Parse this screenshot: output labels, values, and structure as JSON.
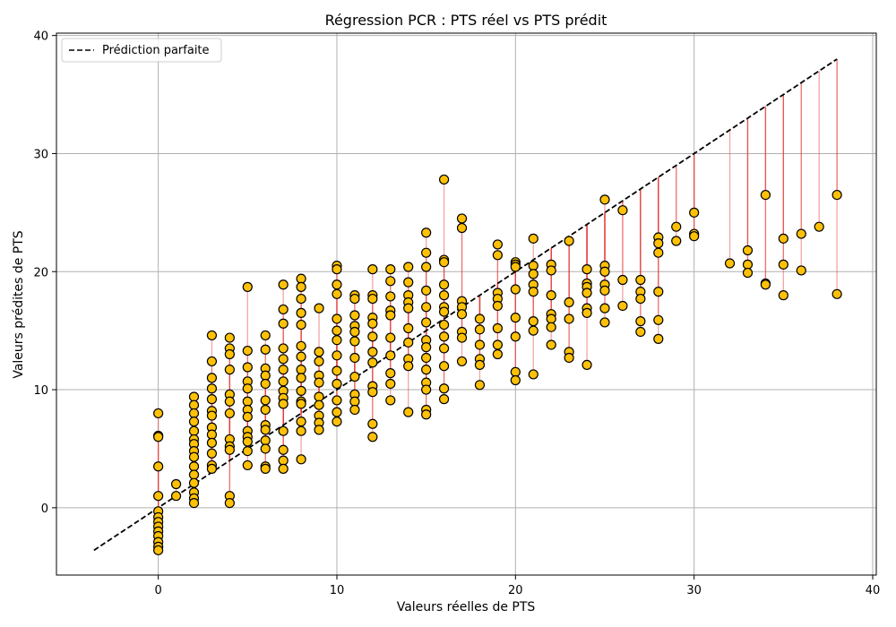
{
  "chart_data": {
    "type": "scatter",
    "title": "Régression PCR : PTS réel vs PTS prédit",
    "xlabel": "Valeurs réelles de PTS",
    "ylabel": "Valeurs prédites de PTS",
    "xlim": [
      -5.7,
      40.2
    ],
    "ylim": [
      -5.7,
      40.2
    ],
    "xticks": [
      0,
      10,
      20,
      30,
      40
    ],
    "yticks": [
      0,
      10,
      20,
      30,
      40
    ],
    "grid": true,
    "legend": {
      "placement": "top-left",
      "entries": [
        "Prédiction parfaite"
      ]
    },
    "colors": {
      "marker_fill": "#FFC107",
      "marker_edge": "#000000",
      "residual_line": "#E53935",
      "ideal_line": "#000000",
      "grid": "#B0B0B0"
    },
    "ideal_line": {
      "name": "Prédiction parfaite",
      "x": [
        -3.6,
        38
      ],
      "y": [
        -3.6,
        38
      ],
      "style": "dashed"
    },
    "points": [
      [
        0,
        8.0
      ],
      [
        0,
        6.1
      ],
      [
        0,
        6.0
      ],
      [
        0,
        3.5
      ],
      [
        0,
        1.0
      ],
      [
        0,
        -0.3
      ],
      [
        0,
        -0.8
      ],
      [
        0,
        -1.2
      ],
      [
        0,
        -1.6
      ],
      [
        0,
        -2.0
      ],
      [
        0,
        -2.4
      ],
      [
        0,
        -2.9
      ],
      [
        0,
        -3.3
      ],
      [
        0,
        -3.6
      ],
      [
        1,
        1.0
      ],
      [
        1,
        2.0
      ],
      [
        2,
        9.4
      ],
      [
        2,
        8.7
      ],
      [
        2,
        8.0
      ],
      [
        2,
        7.3
      ],
      [
        2,
        6.5
      ],
      [
        2,
        5.8
      ],
      [
        2,
        5.4
      ],
      [
        2,
        4.8
      ],
      [
        2,
        4.3
      ],
      [
        2,
        3.5
      ],
      [
        2,
        2.8
      ],
      [
        2,
        2.1
      ],
      [
        2,
        1.3
      ],
      [
        2,
        0.8
      ],
      [
        2,
        0.4
      ],
      [
        3,
        14.6
      ],
      [
        3,
        12.4
      ],
      [
        3,
        11.0
      ],
      [
        3,
        10.1
      ],
      [
        3,
        9.2
      ],
      [
        3,
        8.2
      ],
      [
        3,
        7.8
      ],
      [
        3,
        6.8
      ],
      [
        3,
        6.2
      ],
      [
        3,
        5.5
      ],
      [
        3,
        4.6
      ],
      [
        3,
        3.6
      ],
      [
        3,
        3.3
      ],
      [
        4,
        14.4
      ],
      [
        4,
        13.5
      ],
      [
        4,
        13.0
      ],
      [
        4,
        11.7
      ],
      [
        4,
        9.6
      ],
      [
        4,
        9.0
      ],
      [
        4,
        8.0
      ],
      [
        4,
        5.8
      ],
      [
        4,
        5.2
      ],
      [
        4,
        4.9
      ],
      [
        4,
        1.0
      ],
      [
        4,
        0.4
      ],
      [
        5,
        18.7
      ],
      [
        5,
        13.3
      ],
      [
        5,
        11.9
      ],
      [
        5,
        10.7
      ],
      [
        5,
        10.1
      ],
      [
        5,
        9.0
      ],
      [
        5,
        8.3
      ],
      [
        5,
        7.7
      ],
      [
        5,
        6.5
      ],
      [
        5,
        6.0
      ],
      [
        5,
        5.6
      ],
      [
        5,
        4.8
      ],
      [
        5,
        3.6
      ],
      [
        6,
        14.6
      ],
      [
        6,
        13.4
      ],
      [
        6,
        11.8
      ],
      [
        6,
        11.2
      ],
      [
        6,
        10.5
      ],
      [
        6,
        9.1
      ],
      [
        6,
        8.3
      ],
      [
        6,
        7.0
      ],
      [
        6,
        6.6
      ],
      [
        6,
        5.7
      ],
      [
        6,
        5.0
      ],
      [
        6,
        3.5
      ],
      [
        6,
        3.3
      ],
      [
        7,
        18.9
      ],
      [
        7,
        16.8
      ],
      [
        7,
        15.6
      ],
      [
        7,
        13.5
      ],
      [
        7,
        12.6
      ],
      [
        7,
        11.7
      ],
      [
        7,
        10.7
      ],
      [
        7,
        9.9
      ],
      [
        7,
        9.3
      ],
      [
        7,
        8.8
      ],
      [
        7,
        6.5
      ],
      [
        7,
        4.9
      ],
      [
        7,
        4.0
      ],
      [
        7,
        3.3
      ],
      [
        8,
        19.4
      ],
      [
        8,
        18.7
      ],
      [
        8,
        17.7
      ],
      [
        8,
        16.5
      ],
      [
        8,
        15.5
      ],
      [
        8,
        13.7
      ],
      [
        8,
        12.8
      ],
      [
        8,
        11.7
      ],
      [
        8,
        11.0
      ],
      [
        8,
        9.9
      ],
      [
        8,
        9.0
      ],
      [
        8,
        8.8
      ],
      [
        8,
        7.3
      ],
      [
        8,
        6.5
      ],
      [
        8,
        4.1
      ],
      [
        9,
        16.9
      ],
      [
        9,
        13.2
      ],
      [
        9,
        12.4
      ],
      [
        9,
        11.2
      ],
      [
        9,
        10.6
      ],
      [
        9,
        9.4
      ],
      [
        9,
        8.7
      ],
      [
        9,
        7.8
      ],
      [
        9,
        7.2
      ],
      [
        9,
        6.6
      ],
      [
        10,
        20.5
      ],
      [
        10,
        20.2
      ],
      [
        10,
        18.9
      ],
      [
        10,
        18.1
      ],
      [
        10,
        16.0
      ],
      [
        10,
        15.0
      ],
      [
        10,
        14.2
      ],
      [
        10,
        12.9
      ],
      [
        10,
        11.6
      ],
      [
        10,
        10.5
      ],
      [
        10,
        9.1
      ],
      [
        10,
        8.1
      ],
      [
        10,
        7.3
      ],
      [
        11,
        18.0
      ],
      [
        11,
        17.7
      ],
      [
        11,
        16.3
      ],
      [
        11,
        15.4
      ],
      [
        11,
        14.9
      ],
      [
        11,
        14.1
      ],
      [
        11,
        12.7
      ],
      [
        11,
        11.1
      ],
      [
        11,
        9.6
      ],
      [
        11,
        9.0
      ],
      [
        11,
        8.3
      ],
      [
        12,
        20.2
      ],
      [
        12,
        18.0
      ],
      [
        12,
        17.7
      ],
      [
        12,
        16.1
      ],
      [
        12,
        15.6
      ],
      [
        12,
        14.5
      ],
      [
        12,
        13.2
      ],
      [
        12,
        12.3
      ],
      [
        12,
        10.3
      ],
      [
        12,
        9.8
      ],
      [
        12,
        7.1
      ],
      [
        12,
        6.0
      ],
      [
        13,
        20.2
      ],
      [
        13,
        19.2
      ],
      [
        13,
        17.9
      ],
      [
        13,
        16.7
      ],
      [
        13,
        16.3
      ],
      [
        13,
        14.4
      ],
      [
        13,
        12.9
      ],
      [
        13,
        11.4
      ],
      [
        13,
        10.5
      ],
      [
        13,
        9.1
      ],
      [
        14,
        20.4
      ],
      [
        14,
        19.1
      ],
      [
        14,
        18.0
      ],
      [
        14,
        17.4
      ],
      [
        14,
        16.9
      ],
      [
        14,
        15.2
      ],
      [
        14,
        14.0
      ],
      [
        14,
        12.6
      ],
      [
        14,
        12.0
      ],
      [
        14,
        8.1
      ],
      [
        15,
        23.3
      ],
      [
        15,
        21.6
      ],
      [
        15,
        20.4
      ],
      [
        15,
        18.4
      ],
      [
        15,
        17.0
      ],
      [
        15,
        15.7
      ],
      [
        15,
        14.2
      ],
      [
        15,
        13.6
      ],
      [
        15,
        12.7
      ],
      [
        15,
        11.7
      ],
      [
        15,
        10.6
      ],
      [
        15,
        10.0
      ],
      [
        15,
        8.3
      ],
      [
        15,
        7.9
      ],
      [
        16,
        27.8
      ],
      [
        16,
        21.0
      ],
      [
        16,
        20.8
      ],
      [
        16,
        18.9
      ],
      [
        16,
        18.0
      ],
      [
        16,
        17.0
      ],
      [
        16,
        16.6
      ],
      [
        16,
        15.5
      ],
      [
        16,
        14.5
      ],
      [
        16,
        13.5
      ],
      [
        16,
        12.0
      ],
      [
        16,
        10.1
      ],
      [
        16,
        9.2
      ],
      [
        17,
        24.5
      ],
      [
        17,
        23.7
      ],
      [
        17,
        17.5
      ],
      [
        17,
        17.0
      ],
      [
        17,
        16.4
      ],
      [
        17,
        14.9
      ],
      [
        17,
        14.4
      ],
      [
        17,
        12.4
      ],
      [
        18,
        16.0
      ],
      [
        18,
        15.1
      ],
      [
        18,
        13.8
      ],
      [
        18,
        12.6
      ],
      [
        18,
        12.1
      ],
      [
        18,
        10.4
      ],
      [
        19,
        22.3
      ],
      [
        19,
        21.4
      ],
      [
        19,
        18.2
      ],
      [
        19,
        17.7
      ],
      [
        19,
        17.1
      ],
      [
        19,
        15.2
      ],
      [
        19,
        13.8
      ],
      [
        19,
        13.0
      ],
      [
        20,
        20.8
      ],
      [
        20,
        20.6
      ],
      [
        20,
        20.4
      ],
      [
        20,
        18.5
      ],
      [
        20,
        16.1
      ],
      [
        20,
        14.5
      ],
      [
        20,
        11.5
      ],
      [
        20,
        10.8
      ],
      [
        21,
        22.8
      ],
      [
        21,
        20.5
      ],
      [
        21,
        19.8
      ],
      [
        21,
        18.9
      ],
      [
        21,
        18.3
      ],
      [
        21,
        15.8
      ],
      [
        21,
        15.0
      ],
      [
        21,
        11.3
      ],
      [
        22,
        20.6
      ],
      [
        22,
        20.1
      ],
      [
        22,
        18.0
      ],
      [
        22,
        16.4
      ],
      [
        22,
        16.0
      ],
      [
        22,
        15.3
      ],
      [
        22,
        13.8
      ],
      [
        23,
        22.6
      ],
      [
        23,
        17.4
      ],
      [
        23,
        16.0
      ],
      [
        23,
        13.2
      ],
      [
        23,
        12.7
      ],
      [
        24,
        20.2
      ],
      [
        24,
        19.0
      ],
      [
        24,
        18.7
      ],
      [
        24,
        18.2
      ],
      [
        24,
        16.9
      ],
      [
        24,
        16.5
      ],
      [
        24,
        12.1
      ],
      [
        25,
        26.1
      ],
      [
        25,
        20.5
      ],
      [
        25,
        20.0
      ],
      [
        25,
        18.9
      ],
      [
        25,
        18.4
      ],
      [
        25,
        16.9
      ],
      [
        25,
        15.7
      ],
      [
        26,
        25.2
      ],
      [
        26,
        19.3
      ],
      [
        26,
        17.1
      ],
      [
        27,
        19.3
      ],
      [
        27,
        18.3
      ],
      [
        27,
        17.7
      ],
      [
        27,
        15.8
      ],
      [
        27,
        14.9
      ],
      [
        28,
        22.9
      ],
      [
        28,
        22.4
      ],
      [
        28,
        21.6
      ],
      [
        28,
        18.3
      ],
      [
        28,
        15.9
      ],
      [
        28,
        14.3
      ],
      [
        29,
        23.8
      ],
      [
        29,
        22.6
      ],
      [
        30,
        25.0
      ],
      [
        30,
        23.2
      ],
      [
        30,
        23.0
      ],
      [
        32,
        20.7
      ],
      [
        33,
        21.8
      ],
      [
        33,
        20.6
      ],
      [
        33,
        19.9
      ],
      [
        34,
        26.5
      ],
      [
        34,
        19.0
      ],
      [
        34,
        18.9
      ],
      [
        35,
        22.8
      ],
      [
        35,
        20.6
      ],
      [
        35,
        18.0
      ],
      [
        36,
        23.2
      ],
      [
        36,
        20.1
      ],
      [
        37,
        23.8
      ],
      [
        38,
        26.5
      ],
      [
        38,
        18.1
      ]
    ]
  }
}
